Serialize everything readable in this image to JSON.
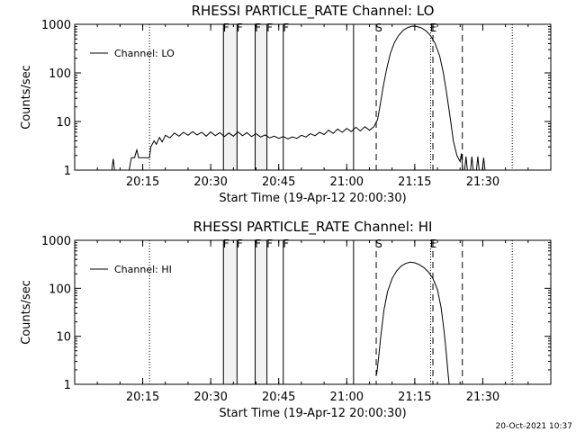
{
  "footer": {
    "timestamp": "20-Oct-2021 10:37"
  },
  "chart_data": [
    {
      "type": "line",
      "title": "RHESSI PARTICLE_RATE Channel: LO",
      "xlabel": "Start Time (19-Apr-12 20:00:30)",
      "ylabel": "Counts/sec",
      "yscale": "log",
      "ylim": [
        1,
        1000
      ],
      "xlim_min_from_start": [
        0,
        105
      ],
      "x_ticks": [
        {
          "t": 15,
          "label": "20:15"
        },
        {
          "t": 30,
          "label": "20:30"
        },
        {
          "t": 45,
          "label": "20:45"
        },
        {
          "t": 60,
          "label": "21:00"
        },
        {
          "t": 75,
          "label": "21:15"
        },
        {
          "t": 90,
          "label": "21:30"
        }
      ],
      "y_ticks": [
        {
          "v": 1,
          "label": "1"
        },
        {
          "v": 10,
          "label": "10"
        },
        {
          "v": 100,
          "label": "100"
        },
        {
          "v": 1000,
          "label": "1000"
        }
      ],
      "legend": {
        "label": "Channel: LO",
        "position": "top-left"
      },
      "flags": [
        {
          "t": 32.8,
          "label": "F",
          "style": "solid"
        },
        {
          "t": 35.8,
          "label": "F",
          "style": "solid"
        },
        {
          "t": 39.8,
          "label": "F",
          "style": "solid"
        },
        {
          "t": 42.4,
          "label": "F",
          "style": "solid"
        },
        {
          "t": 46.0,
          "label": "F",
          "style": "solid"
        },
        {
          "t": 61.5,
          "label": "",
          "style": "solid"
        },
        {
          "t": 66.5,
          "label": "S",
          "style": "dashed"
        },
        {
          "t": 79.0,
          "label": "",
          "style": "dashed"
        },
        {
          "t": 85.5,
          "label": "",
          "style": "dashed"
        },
        {
          "t": 16.5,
          "label": "",
          "style": "dotted"
        },
        {
          "t": 78.5,
          "label": "E",
          "style": "dotted"
        },
        {
          "t": 96.5,
          "label": "",
          "style": "dotted"
        }
      ],
      "series": [
        {
          "points": [
            [
              8.2,
              1.0
            ],
            [
              8.5,
              1.7
            ],
            [
              8.8,
              1.0
            ],
            [
              12.0,
              1.0
            ],
            [
              12.5,
              1.8
            ],
            [
              13.2,
              1.8
            ],
            [
              13.7,
              2.6
            ],
            [
              14.1,
              1.8
            ],
            [
              16.5,
              1.8
            ],
            [
              16.8,
              3.0
            ],
            [
              17.5,
              4.0
            ],
            [
              18.0,
              3.4
            ],
            [
              18.7,
              4.7
            ],
            [
              19.3,
              3.8
            ],
            [
              20.0,
              5.2
            ],
            [
              21.0,
              4.6
            ],
            [
              22.0,
              5.8
            ],
            [
              23.0,
              5.0
            ],
            [
              24.0,
              6.0
            ],
            [
              25.0,
              5.2
            ],
            [
              26.0,
              6.2
            ],
            [
              27.0,
              5.3
            ],
            [
              28.0,
              6.0
            ],
            [
              29.0,
              5.0
            ],
            [
              30.0,
              6.1
            ],
            [
              31.0,
              5.1
            ],
            [
              32.0,
              5.9
            ],
            [
              33.0,
              4.9
            ],
            [
              34.0,
              5.8
            ],
            [
              35.0,
              5.0
            ],
            [
              36.0,
              6.1
            ],
            [
              37.0,
              5.1
            ],
            [
              38.0,
              5.9
            ],
            [
              39.0,
              4.9
            ],
            [
              40.0,
              5.6
            ],
            [
              41.0,
              4.8
            ],
            [
              42.0,
              5.3
            ],
            [
              43.0,
              4.6
            ],
            [
              44.0,
              5.0
            ],
            [
              45.0,
              4.5
            ],
            [
              46.0,
              4.9
            ],
            [
              47.0,
              4.4
            ],
            [
              48.0,
              4.8
            ],
            [
              49.0,
              4.5
            ],
            [
              50.0,
              5.2
            ],
            [
              51.0,
              4.8
            ],
            [
              52.0,
              5.6
            ],
            [
              53.0,
              5.1
            ],
            [
              54.0,
              6.0
            ],
            [
              55.0,
              5.4
            ],
            [
              56.0,
              6.6
            ],
            [
              57.0,
              5.7
            ],
            [
              58.0,
              7.0
            ],
            [
              59.0,
              6.0
            ],
            [
              60.0,
              7.2
            ],
            [
              61.0,
              6.2
            ],
            [
              62.0,
              7.6
            ],
            [
              63.0,
              6.4
            ],
            [
              64.0,
              7.8
            ],
            [
              65.0,
              6.6
            ],
            [
              66.0,
              7.8
            ],
            [
              66.8,
              11
            ],
            [
              67.3,
              20
            ],
            [
              68.0,
              50
            ],
            [
              68.8,
              120
            ],
            [
              69.6,
              250
            ],
            [
              70.5,
              420
            ],
            [
              71.5,
              600
            ],
            [
              72.5,
              760
            ],
            [
              73.5,
              860
            ],
            [
              74.5,
              920
            ],
            [
              75.5,
              900
            ],
            [
              76.5,
              840
            ],
            [
              77.5,
              730
            ],
            [
              78.5,
              580
            ],
            [
              79.5,
              400
            ],
            [
              80.5,
              220
            ],
            [
              81.3,
              100
            ],
            [
              82.0,
              40
            ],
            [
              82.8,
              12
            ],
            [
              83.5,
              4
            ],
            [
              84.3,
              2.0
            ],
            [
              85.0,
              1.5
            ],
            [
              85.3,
              2.2
            ],
            [
              85.6,
              1.0
            ],
            [
              86.0,
              1.0
            ],
            [
              86.3,
              1.9
            ],
            [
              86.6,
              1.0
            ],
            [
              87.3,
              1.0
            ],
            [
              87.6,
              1.9
            ],
            [
              87.9,
              1.0
            ],
            [
              88.6,
              1.0
            ],
            [
              88.9,
              1.9
            ],
            [
              89.2,
              1.0
            ],
            [
              89.9,
              1.0
            ],
            [
              90.2,
              1.8
            ],
            [
              90.5,
              1.0
            ]
          ]
        }
      ]
    },
    {
      "type": "line",
      "title": "RHESSI PARTICLE_RATE Channel: HI",
      "xlabel": "Start Time (19-Apr-12 20:00:30)",
      "ylabel": "Counts/sec",
      "yscale": "log",
      "ylim": [
        1,
        1000
      ],
      "xlim_min_from_start": [
        0,
        105
      ],
      "x_ticks": [
        {
          "t": 15,
          "label": "20:15"
        },
        {
          "t": 30,
          "label": "20:30"
        },
        {
          "t": 45,
          "label": "20:45"
        },
        {
          "t": 60,
          "label": "21:00"
        },
        {
          "t": 75,
          "label": "21:15"
        },
        {
          "t": 90,
          "label": "21:30"
        }
      ],
      "y_ticks": [
        {
          "v": 1,
          "label": "1"
        },
        {
          "v": 10,
          "label": "10"
        },
        {
          "v": 100,
          "label": "100"
        },
        {
          "v": 1000,
          "label": "1000"
        }
      ],
      "legend": {
        "label": "Channel: HI",
        "position": "top-left"
      },
      "flags": [
        {
          "t": 32.8,
          "label": "F",
          "style": "solid"
        },
        {
          "t": 35.8,
          "label": "F",
          "style": "solid"
        },
        {
          "t": 39.8,
          "label": "F",
          "style": "solid"
        },
        {
          "t": 42.4,
          "label": "F",
          "style": "solid"
        },
        {
          "t": 46.0,
          "label": "F",
          "style": "solid"
        },
        {
          "t": 61.5,
          "label": "",
          "style": "solid"
        },
        {
          "t": 66.5,
          "label": "S",
          "style": "dashed"
        },
        {
          "t": 79.0,
          "label": "",
          "style": "dashed"
        },
        {
          "t": 85.5,
          "label": "",
          "style": "dashed"
        },
        {
          "t": 16.5,
          "label": "",
          "style": "dotted"
        },
        {
          "t": 78.5,
          "label": "E",
          "style": "dotted"
        },
        {
          "t": 96.5,
          "label": "",
          "style": "dotted"
        }
      ],
      "series": [
        {
          "points": [
            [
              66.6,
              1.6
            ],
            [
              67.0,
              3.5
            ],
            [
              67.5,
              10
            ],
            [
              68.2,
              35
            ],
            [
              69.0,
              85
            ],
            [
              70.0,
              160
            ],
            [
              71.0,
              230
            ],
            [
              72.0,
              290
            ],
            [
              73.0,
              330
            ],
            [
              74.0,
              350
            ],
            [
              75.0,
              340
            ],
            [
              76.0,
              310
            ],
            [
              77.0,
              270
            ],
            [
              78.0,
              220
            ],
            [
              79.0,
              160
            ],
            [
              80.0,
              95
            ],
            [
              80.8,
              40
            ],
            [
              81.5,
              12
            ],
            [
              82.0,
              4
            ],
            [
              82.4,
              1.5
            ],
            [
              82.6,
              1.0
            ]
          ]
        }
      ]
    }
  ]
}
